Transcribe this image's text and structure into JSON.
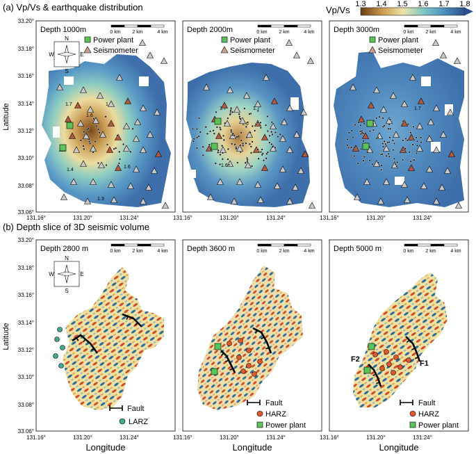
{
  "figure": {
    "colors": {
      "vp_low": "#6b3d14",
      "vp_mid": "#e0c98a",
      "vp_high": "#3f6fab",
      "power_plant": "#5cc35a",
      "seismometer_shallow": "#b35a3e",
      "seismometer_deep": "#c8c8c8",
      "larz": "#3fa88f",
      "harz": "#e2572a",
      "fault": "#000000",
      "seismic_red": "#d24a2a",
      "seismic_blue": "#2a6aa0",
      "seismic_yellow": "#efe2a0"
    },
    "section_a": {
      "title": "(a) Vp/Vs & earthquake distribution",
      "colorbar": {
        "label": "Vp/Vs",
        "ticks": [
          "1.3",
          "1.4",
          "1.5",
          "1.6",
          "1.7",
          "1.8"
        ]
      },
      "panels": [
        {
          "depth": "Depth 1000m",
          "legend": [
            "Power plant",
            "Seismometer"
          ],
          "contour_labels": [
            "1.7",
            "1.7",
            "1.6",
            "1.6",
            "1.4",
            "1.3"
          ]
        },
        {
          "depth": "Depth 2000m",
          "legend": [
            "Power plant",
            "Seismometer"
          ],
          "contour_labels": [
            "1.7",
            "1.7",
            "1.6",
            "1.6"
          ]
        },
        {
          "depth": "Depth 3000m",
          "legend": [
            "Power plant",
            "Seismometer"
          ],
          "contour_labels": [
            "1.7"
          ]
        }
      ]
    },
    "section_b": {
      "title": "(b) Depth slice of 3D seismic volume",
      "panels": [
        {
          "depth": "Depth 2800 m",
          "legend": [
            "Fault",
            "LARZ"
          ]
        },
        {
          "depth": "Depth 3600 m",
          "legend": [
            "Fault",
            "HARZ",
            "Power plant"
          ]
        },
        {
          "depth": "Depth 5000 m",
          "legend": [
            "Fault",
            "HARZ",
            "Power plant"
          ],
          "fault_labels": [
            "F1",
            "F2"
          ]
        }
      ]
    },
    "axes": {
      "xlabel": "Longitude",
      "ylabel": "Latitude",
      "x_ticks": [
        "131.16°",
        "131.20°",
        "131.24°"
      ],
      "y_ticks": [
        "33.20°",
        "33.18°",
        "33.16°",
        "33.14°",
        "33.12°",
        "33.10°",
        "33.08°",
        "33.06°"
      ]
    },
    "scale_bar": [
      "0 km",
      "2 km",
      "4 km"
    ],
    "compass": [
      "N",
      "E",
      "S",
      "W"
    ]
  }
}
